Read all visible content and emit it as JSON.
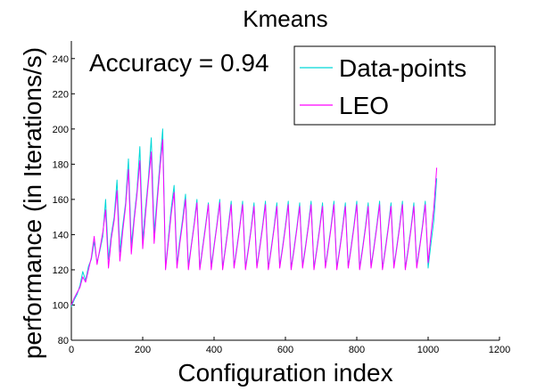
{
  "chart_data": {
    "type": "line",
    "title": "Kmeans",
    "xlabel": "Configuration index",
    "ylabel": "performance  (in Iterations/s)",
    "xlim": [
      0,
      1200
    ],
    "ylim": [
      80,
      250
    ],
    "xticks": [
      0,
      200,
      400,
      600,
      800,
      1000,
      1200
    ],
    "yticks": [
      80,
      100,
      120,
      140,
      160,
      180,
      200,
      220,
      240
    ],
    "annotation": "Accuracy = 0.94",
    "legend_position": "top-right",
    "grid": false,
    "series": [
      {
        "name": "Data-points",
        "color": "#00d8d8",
        "x": [
          0,
          8,
          16,
          24,
          32,
          40,
          48,
          56,
          64,
          72,
          80,
          88,
          96,
          104,
          112,
          120,
          128,
          136,
          144,
          152,
          160,
          168,
          176,
          184,
          192,
          200,
          208,
          216,
          224,
          232,
          240,
          248,
          256,
          264,
          272,
          280,
          288,
          296,
          304,
          312,
          320,
          328,
          336,
          344,
          352,
          360,
          368,
          376,
          384,
          392,
          400,
          408,
          416,
          424,
          432,
          440,
          448,
          456,
          464,
          472,
          480,
          488,
          496,
          504,
          512,
          520,
          528,
          536,
          544,
          552,
          560,
          568,
          576,
          584,
          592,
          600,
          608,
          616,
          624,
          632,
          640,
          648,
          656,
          664,
          672,
          680,
          688,
          696,
          704,
          712,
          720,
          728,
          736,
          744,
          752,
          760,
          768,
          776,
          784,
          792,
          800,
          808,
          816,
          824,
          832,
          840,
          848,
          856,
          864,
          872,
          880,
          888,
          896,
          904,
          912,
          920,
          928,
          936,
          944,
          952,
          960,
          968,
          976,
          984,
          992,
          1000,
          1008,
          1016,
          1024
        ],
        "y": [
          99,
          103,
          106,
          111,
          119,
          114,
          122,
          126,
          136,
          124,
          131,
          139,
          160,
          126,
          140,
          150,
          171,
          130,
          145,
          158,
          183,
          134,
          150,
          165,
          190,
          137,
          155,
          172,
          195,
          141,
          160,
          180,
          200,
          121,
          138,
          155,
          168,
          123,
          137,
          149,
          163,
          122,
          134,
          146,
          160,
          121,
          133,
          145,
          158,
          122,
          134,
          146,
          160,
          121,
          133,
          145,
          159,
          122,
          133,
          145,
          159,
          121,
          132,
          144,
          158,
          122,
          133,
          145,
          159,
          121,
          132,
          144,
          158,
          122,
          133,
          145,
          159,
          121,
          132,
          144,
          158,
          122,
          133,
          145,
          159,
          121,
          132,
          144,
          158,
          122,
          133,
          145,
          159,
          121,
          132,
          144,
          158,
          122,
          133,
          145,
          159,
          121,
          132,
          144,
          158,
          122,
          133,
          145,
          159,
          121,
          132,
          144,
          158,
          122,
          133,
          145,
          159,
          121,
          132,
          144,
          158,
          122,
          133,
          145,
          159,
          121,
          135,
          148,
          172
        ]
      },
      {
        "name": "LEO",
        "color": "#ff00ff",
        "x": [
          0,
          8,
          16,
          24,
          32,
          40,
          48,
          56,
          64,
          72,
          80,
          88,
          96,
          104,
          112,
          120,
          128,
          136,
          144,
          152,
          160,
          168,
          176,
          184,
          192,
          200,
          208,
          216,
          224,
          232,
          240,
          248,
          256,
          264,
          272,
          280,
          288,
          296,
          304,
          312,
          320,
          328,
          336,
          344,
          352,
          360,
          368,
          376,
          384,
          392,
          400,
          408,
          416,
          424,
          432,
          440,
          448,
          456,
          464,
          472,
          480,
          488,
          496,
          504,
          512,
          520,
          528,
          536,
          544,
          552,
          560,
          568,
          576,
          584,
          592,
          600,
          608,
          616,
          624,
          632,
          640,
          648,
          656,
          664,
          672,
          680,
          688,
          696,
          704,
          712,
          720,
          728,
          736,
          744,
          752,
          760,
          768,
          776,
          784,
          792,
          800,
          808,
          816,
          824,
          832,
          840,
          848,
          856,
          864,
          872,
          880,
          888,
          896,
          904,
          912,
          920,
          928,
          936,
          944,
          952,
          960,
          968,
          976,
          984,
          992,
          1000,
          1008,
          1016,
          1024
        ],
        "y": [
          100,
          104,
          107,
          110,
          116,
          113,
          120,
          127,
          139,
          123,
          132,
          141,
          154,
          121,
          138,
          148,
          165,
          125,
          142,
          156,
          177,
          129,
          148,
          163,
          182,
          132,
          152,
          170,
          187,
          135,
          157,
          177,
          194,
          120,
          136,
          152,
          164,
          121,
          135,
          147,
          160,
          120,
          133,
          145,
          158,
          120,
          132,
          144,
          157,
          120,
          133,
          145,
          158,
          120,
          132,
          144,
          157,
          121,
          132,
          144,
          157,
          120,
          131,
          143,
          156,
          121,
          132,
          144,
          157,
          120,
          131,
          143,
          156,
          121,
          132,
          144,
          157,
          120,
          131,
          143,
          156,
          121,
          132,
          144,
          157,
          120,
          131,
          143,
          156,
          121,
          132,
          144,
          157,
          120,
          131,
          143,
          156,
          121,
          132,
          144,
          157,
          120,
          131,
          143,
          156,
          121,
          132,
          144,
          157,
          120,
          131,
          143,
          156,
          121,
          132,
          144,
          157,
          120,
          131,
          143,
          156,
          121,
          132,
          144,
          157,
          124,
          140,
          155,
          178
        ]
      }
    ]
  }
}
